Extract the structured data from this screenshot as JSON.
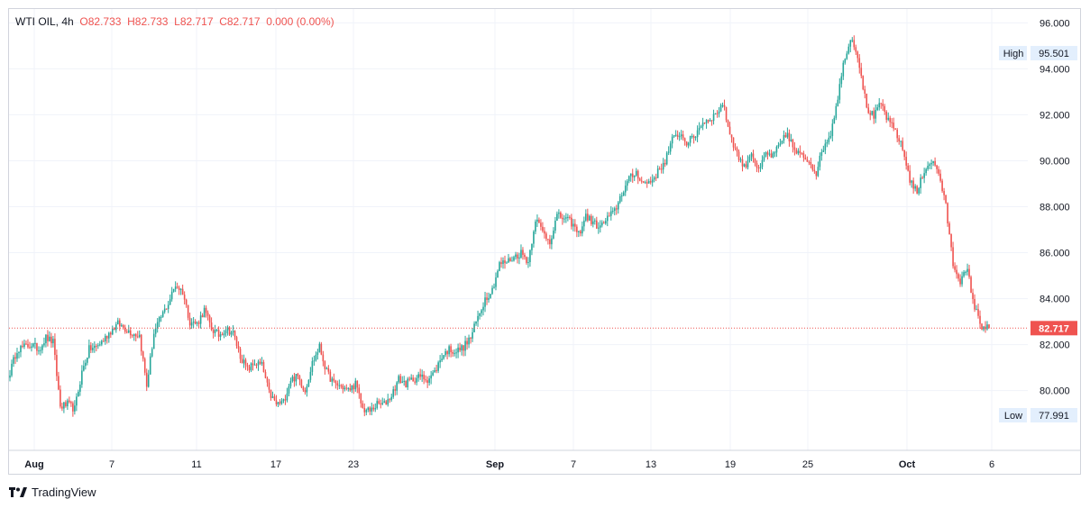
{
  "legend": {
    "symbol": "WTI OIL, ",
    "interval": "4h",
    "open_label": "O",
    "open": "82.733",
    "high_label": "H",
    "high": "82.733",
    "low_label": "L",
    "low": "82.717",
    "close_label": "C",
    "close": "82.717",
    "change": "0.000 (0.00%)"
  },
  "brand": {
    "name": "TradingView"
  },
  "colors": {
    "up": "#26a69a",
    "down": "#ef5350",
    "grid": "#f0f3fa",
    "price_line": "#ef5350"
  },
  "chart_data": {
    "type": "candlestick",
    "title": "WTI OIL, 4h",
    "y_axis": {
      "range": [
        77.4,
        96.6
      ],
      "ticks": [
        80.0,
        82.0,
        84.0,
        86.0,
        88.0,
        90.0,
        92.0,
        94.0,
        96.0
      ],
      "tick_labels": [
        "80.000",
        "82.000",
        "84.000",
        "86.000",
        "88.000",
        "90.000",
        "92.000",
        "94.000",
        "96.000"
      ]
    },
    "x_axis": {
      "tick_labels": [
        "Aug",
        "7",
        "11",
        "17",
        "23",
        "Sep",
        "7",
        "13",
        "19",
        "25",
        "Oct",
        "6"
      ],
      "bold_labels": [
        "Aug",
        "Sep",
        "Oct"
      ]
    },
    "high_marker": {
      "label": "High",
      "value": "95.501"
    },
    "low_marker": {
      "label": "Low",
      "value": "77.991"
    },
    "last_price": {
      "value": 82.717,
      "label": "82.717"
    },
    "anchors": [
      [
        0,
        80.8
      ],
      [
        4,
        81.8
      ],
      [
        8,
        81.9
      ],
      [
        12,
        82.0
      ],
      [
        16,
        81.8
      ],
      [
        20,
        82.3
      ],
      [
        24,
        82.1
      ],
      [
        28,
        79.3
      ],
      [
        32,
        79.4
      ],
      [
        36,
        79.2
      ],
      [
        40,
        80.8
      ],
      [
        44,
        81.8
      ],
      [
        48,
        81.9
      ],
      [
        52,
        82.2
      ],
      [
        56,
        82.6
      ],
      [
        60,
        82.9
      ],
      [
        64,
        82.7
      ],
      [
        68,
        82.5
      ],
      [
        72,
        82.4
      ],
      [
        76,
        80.2
      ],
      [
        80,
        82.5
      ],
      [
        84,
        83.2
      ],
      [
        88,
        83.8
      ],
      [
        92,
        84.6
      ],
      [
        96,
        84.3
      ],
      [
        100,
        83.0
      ],
      [
        104,
        82.9
      ],
      [
        108,
        83.5
      ],
      [
        112,
        82.7
      ],
      [
        116,
        82.4
      ],
      [
        120,
        82.7
      ],
      [
        124,
        82.5
      ],
      [
        128,
        81.5
      ],
      [
        132,
        80.9
      ],
      [
        136,
        81.2
      ],
      [
        140,
        81.1
      ],
      [
        144,
        79.9
      ],
      [
        148,
        79.4
      ],
      [
        152,
        79.5
      ],
      [
        156,
        80.5
      ],
      [
        160,
        80.6
      ],
      [
        164,
        80.0
      ],
      [
        168,
        81.2
      ],
      [
        172,
        81.9
      ],
      [
        176,
        80.8
      ],
      [
        180,
        80.3
      ],
      [
        184,
        80.2
      ],
      [
        188,
        80.0
      ],
      [
        192,
        80.3
      ],
      [
        196,
        79.2
      ],
      [
        200,
        79.1
      ],
      [
        204,
        79.4
      ],
      [
        208,
        79.4
      ],
      [
        212,
        79.8
      ],
      [
        216,
        80.5
      ],
      [
        220,
        80.3
      ],
      [
        224,
        80.5
      ],
      [
        228,
        80.6
      ],
      [
        232,
        80.5
      ],
      [
        236,
        80.8
      ],
      [
        240,
        81.5
      ],
      [
        244,
        81.8
      ],
      [
        248,
        81.7
      ],
      [
        252,
        81.9
      ],
      [
        256,
        82.3
      ],
      [
        260,
        83.2
      ],
      [
        264,
        84.0
      ],
      [
        268,
        84.4
      ],
      [
        272,
        85.5
      ],
      [
        276,
        85.6
      ],
      [
        280,
        85.8
      ],
      [
        284,
        86.0
      ],
      [
        288,
        85.6
      ],
      [
        292,
        87.5
      ],
      [
        296,
        86.9
      ],
      [
        300,
        86.5
      ],
      [
        304,
        87.6
      ],
      [
        308,
        87.5
      ],
      [
        312,
        87.3
      ],
      [
        316,
        86.8
      ],
      [
        320,
        87.6
      ],
      [
        324,
        87.3
      ],
      [
        328,
        87.1
      ],
      [
        332,
        87.5
      ],
      [
        336,
        87.8
      ],
      [
        340,
        88.6
      ],
      [
        344,
        89.2
      ],
      [
        348,
        89.5
      ],
      [
        352,
        89.0
      ],
      [
        356,
        89.1
      ],
      [
        360,
        89.5
      ],
      [
        364,
        90.0
      ],
      [
        368,
        90.9
      ],
      [
        372,
        91.2
      ],
      [
        376,
        90.8
      ],
      [
        380,
        91.0
      ],
      [
        384,
        91.6
      ],
      [
        388,
        91.8
      ],
      [
        392,
        92.0
      ],
      [
        396,
        92.5
      ],
      [
        400,
        91.2
      ],
      [
        404,
        90.3
      ],
      [
        408,
        89.7
      ],
      [
        412,
        90.4
      ],
      [
        416,
        89.5
      ],
      [
        420,
        90.3
      ],
      [
        424,
        90.2
      ],
      [
        428,
        90.7
      ],
      [
        432,
        91.2
      ],
      [
        436,
        90.4
      ],
      [
        440,
        90.2
      ],
      [
        444,
        90.0
      ],
      [
        448,
        89.5
      ],
      [
        452,
        90.6
      ],
      [
        456,
        91.2
      ],
      [
        460,
        92.8
      ],
      [
        464,
        94.6
      ],
      [
        468,
        95.4
      ],
      [
        472,
        94.2
      ],
      [
        476,
        92.3
      ],
      [
        480,
        91.9
      ],
      [
        484,
        92.5
      ],
      [
        488,
        91.7
      ],
      [
        492,
        91.3
      ],
      [
        496,
        90.5
      ],
      [
        500,
        89.2
      ],
      [
        504,
        88.6
      ],
      [
        508,
        89.6
      ],
      [
        512,
        90.0
      ],
      [
        516,
        89.5
      ],
      [
        520,
        88.0
      ],
      [
        524,
        85.5
      ],
      [
        528,
        84.8
      ],
      [
        532,
        85.2
      ],
      [
        536,
        83.6
      ],
      [
        540,
        82.8
      ],
      [
        544,
        82.717
      ]
    ]
  }
}
